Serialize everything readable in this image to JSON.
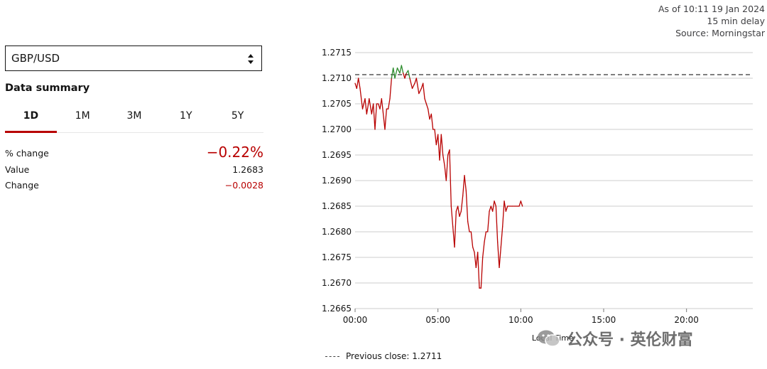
{
  "header": {
    "as_of": "As of 10:11 19 Jan 2024",
    "delay": "15 min delay",
    "source": "Source: Morningstar"
  },
  "selector": {
    "value": "GBP/USD",
    "icon": "up-down-arrows-icon"
  },
  "summary": {
    "title": "Data summary",
    "tabs": [
      "1D",
      "1M",
      "3M",
      "1Y",
      "5Y"
    ],
    "active_tab": "1D",
    "rows": [
      {
        "label": "% change",
        "value": "−0.22%"
      },
      {
        "label": "Value",
        "value": "1.2683"
      },
      {
        "label": "Change",
        "value": "−0.0028"
      }
    ]
  },
  "legend": {
    "previous_close": "Previous close: 1.2711"
  },
  "watermark": {
    "text": "公众号 · 英伦财富",
    "icon": "wechat-icon"
  },
  "colors": {
    "down": "#b80000",
    "up": "#2a8a2a",
    "grid": "#cccccc",
    "ref": "#555555"
  },
  "chart_data": {
    "type": "line",
    "xlabel": "Local Time",
    "ylabel": "",
    "x_ticks": [
      "00:00",
      "05:00",
      "10:00",
      "15:00",
      "20:00"
    ],
    "y_ticks": [
      "1.2715",
      "1.2710",
      "1.2705",
      "1.2700",
      "1.2695",
      "1.2690",
      "1.2685",
      "1.2680",
      "1.2675",
      "1.2670",
      "1.2665"
    ],
    "ylim": [
      1.2665,
      1.2715
    ],
    "xlim_hours": [
      0,
      24
    ],
    "reference_line": {
      "name": "Previous close",
      "value": 1.27107
    },
    "grid": true,
    "series": [
      {
        "x": [
          0.0,
          0.1,
          0.2,
          0.3,
          0.45,
          0.6,
          0.7,
          0.85,
          1.0,
          1.1,
          1.2,
          1.3,
          1.4,
          1.5,
          1.6,
          1.8,
          1.9,
          2.0,
          2.1,
          2.2,
          2.3,
          2.4,
          2.55,
          2.7,
          2.8,
          2.9,
          3.0,
          3.1,
          3.2,
          3.3,
          3.45,
          3.6,
          3.7,
          3.85,
          4.0,
          4.1,
          4.2,
          4.3,
          4.4,
          4.5,
          4.6,
          4.7,
          4.8,
          4.9,
          5.0,
          5.1,
          5.2,
          5.3,
          5.4,
          5.5,
          5.6,
          5.7,
          5.8,
          5.9,
          6.0,
          6.1,
          6.2,
          6.3,
          6.4,
          6.5,
          6.6,
          6.7,
          6.8,
          6.9,
          7.0,
          7.1,
          7.2,
          7.3,
          7.4,
          7.5,
          7.6,
          7.7,
          7.8,
          7.9,
          8.0,
          8.1,
          8.2,
          8.3,
          8.4,
          8.5,
          8.6,
          8.7,
          8.8,
          8.9,
          9.0,
          9.1,
          9.2,
          9.3,
          9.4,
          9.5,
          9.6,
          9.7,
          9.8,
          9.9,
          10.0,
          10.1
        ],
        "y": [
          1.2709,
          1.2708,
          1.271,
          1.2708,
          1.2704,
          1.2706,
          1.2703,
          1.2706,
          1.2703,
          1.2705,
          1.27,
          1.2705,
          1.2705,
          1.2704,
          1.2706,
          1.27,
          1.2704,
          1.2704,
          1.2706,
          1.271,
          1.2712,
          1.271,
          1.2712,
          1.2711,
          1.27125,
          1.2711,
          1.271,
          1.2711,
          1.27115,
          1.271,
          1.2708,
          1.2709,
          1.271,
          1.2707,
          1.2708,
          1.2709,
          1.2706,
          1.2705,
          1.2704,
          1.2702,
          1.2703,
          1.27,
          1.27,
          1.2697,
          1.2699,
          1.2694,
          1.2699,
          1.2695,
          1.2693,
          1.269,
          1.2695,
          1.2696,
          1.2685,
          1.2681,
          1.2677,
          1.2684,
          1.2685,
          1.2683,
          1.2684,
          1.2687,
          1.2691,
          1.2688,
          1.2682,
          1.268,
          1.268,
          1.2677,
          1.2676,
          1.2673,
          1.2676,
          1.2669,
          1.2669,
          1.2675,
          1.2678,
          1.268,
          1.268,
          1.2684,
          1.2685,
          1.2684,
          1.2686,
          1.2685,
          1.2678,
          1.2673,
          1.2677,
          1.2681,
          1.2686,
          1.2684,
          1.2685,
          1.2685,
          1.2685,
          1.2685,
          1.2685,
          1.2685,
          1.2685,
          1.2685,
          1.2686,
          1.2685
        ]
      }
    ]
  }
}
